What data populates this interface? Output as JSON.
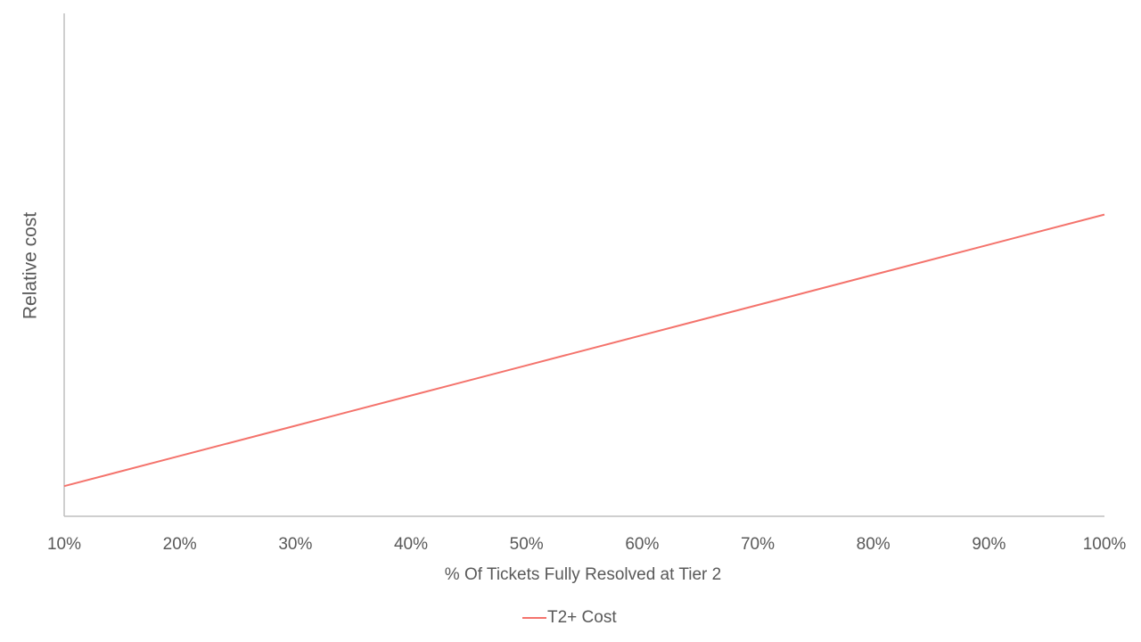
{
  "chart_data": {
    "type": "line",
    "x_label": "% Of Tickets Fully Resolved at Tier 2",
    "y_label": "Relative cost",
    "categories": [
      "10%",
      "20%",
      "30%",
      "40%",
      "50%",
      "60%",
      "70%",
      "80%",
      "90%",
      "100%"
    ],
    "series": [
      {
        "name": "T2+ Cost",
        "color": "#f4736c",
        "values": [
          6,
          12,
          18,
          24,
          30,
          36,
          42,
          48,
          54,
          60
        ]
      }
    ],
    "ylim": [
      0,
      100
    ],
    "legend": "bottom"
  }
}
